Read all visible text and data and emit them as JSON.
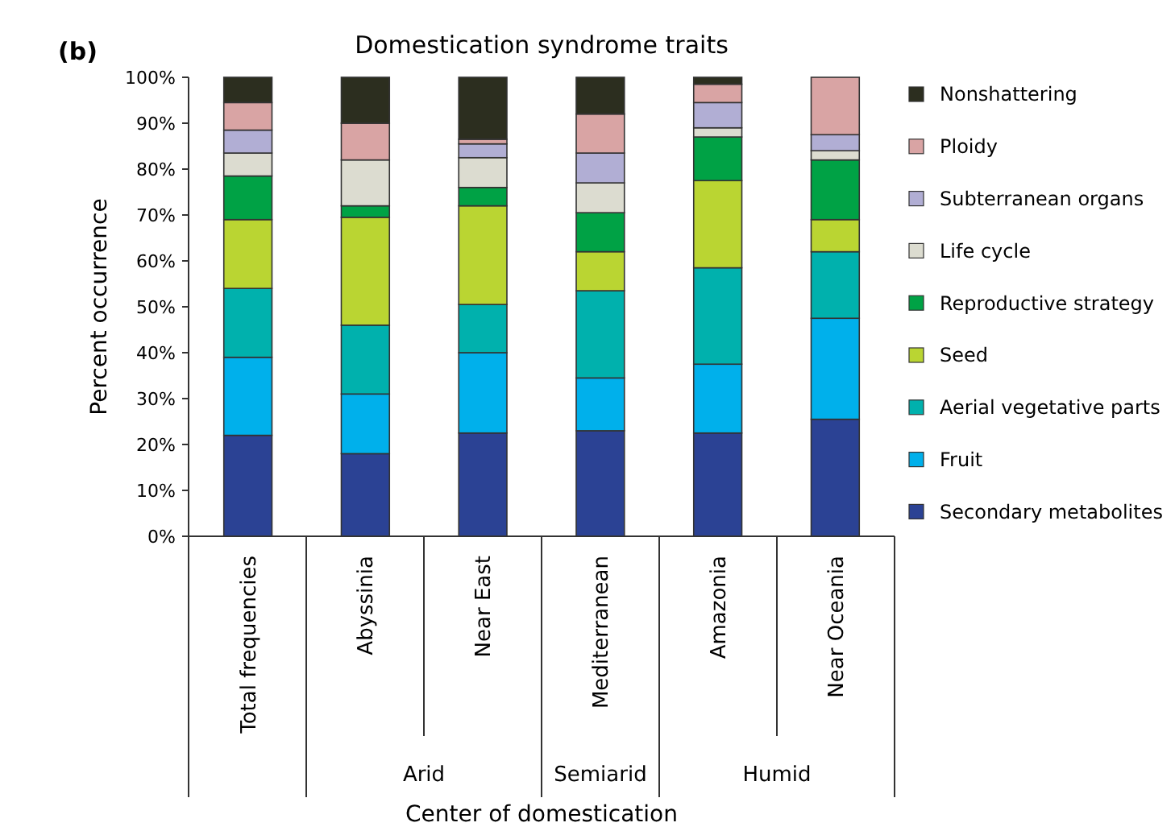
{
  "chart_data": {
    "type": "bar",
    "stacked": true,
    "title": "Domestication syndrome traits",
    "xlabel": "Center of domestication",
    "ylabel": "Percent occurrence",
    "categories": [
      "Total frequencies",
      "Abyssinia",
      "Near East",
      "Mediterranean",
      "Amazonia",
      "Near Oceania"
    ],
    "series": [
      {
        "name": "Secondary metabolites",
        "color": "#2b4294",
        "values": [
          22,
          18,
          22.5,
          23,
          22.5,
          25.5
        ]
      },
      {
        "name": "Fruit",
        "color": "#00b0eb",
        "values": [
          17,
          13,
          17.5,
          11.5,
          15,
          22
        ]
      },
      {
        "name": "Aerial vegetative parts",
        "color": "#00b1ad",
        "values": [
          15,
          15,
          10.5,
          19,
          21,
          14.5
        ]
      },
      {
        "name": "Seed",
        "color": "#bad532",
        "values": [
          15,
          23.5,
          21.5,
          8.5,
          19,
          7
        ]
      },
      {
        "name": "Reproductive strategy",
        "color": "#00a245",
        "values": [
          9.5,
          2.5,
          4,
          8.5,
          9.5,
          13
        ]
      },
      {
        "name": "Life cycle",
        "color": "#dcdcd0",
        "values": [
          5,
          10,
          6.5,
          6.5,
          2,
          2
        ]
      },
      {
        "name": "Subterranean organs",
        "color": "#b1aed4",
        "values": [
          5,
          0,
          3,
          6.5,
          5.5,
          3.5
        ]
      },
      {
        "name": "Ploidy",
        "color": "#d9a4a4",
        "values": [
          6,
          8,
          1,
          8.5,
          4,
          12.5
        ]
      },
      {
        "name": "Nonshattering",
        "color": "#2c2e1f",
        "values": [
          5.5,
          10,
          13.5,
          8,
          1.5,
          0
        ]
      }
    ],
    "ylim": [
      0,
      100
    ],
    "yticks": [
      {
        "value": 0,
        "label": "0%"
      },
      {
        "value": 10,
        "label": "10%"
      },
      {
        "value": 20,
        "label": "20%"
      },
      {
        "value": 30,
        "label": "30%"
      },
      {
        "value": 40,
        "label": "40%"
      },
      {
        "value": 50,
        "label": "50%"
      },
      {
        "value": 60,
        "label": "60%"
      },
      {
        "value": 70,
        "label": "70%"
      },
      {
        "value": 80,
        "label": "80%"
      },
      {
        "value": 90,
        "label": "90%"
      },
      {
        "value": 100,
        "label": "100%"
      }
    ],
    "grid": false,
    "legend": "right",
    "annotations": [
      "(b)",
      "Arid",
      "Semiarid",
      "Humid"
    ]
  }
}
